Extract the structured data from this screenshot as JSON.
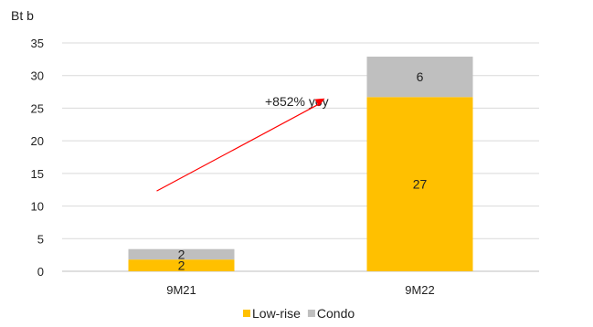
{
  "chart_data": {
    "type": "bar",
    "stacked": true,
    "unit_label": "Bt b",
    "categories": [
      "9M21",
      "9M22"
    ],
    "series": [
      {
        "name": "Low-rise",
        "values": [
          2,
          27
        ],
        "plotted": [
          1.8,
          26.7
        ],
        "color": "#FFC000"
      },
      {
        "name": "Condo",
        "values": [
          2,
          6
        ],
        "plotted": [
          1.6,
          6.2
        ],
        "color": "#BFBFBF"
      }
    ],
    "ylim": [
      0,
      35
    ],
    "yticks": [
      "0",
      "5",
      "10",
      "15",
      "20",
      "25",
      "30",
      "35"
    ],
    "grid": true,
    "legend_position": "bottom",
    "annotation": {
      "text": "+852% yoy",
      "color": "#FF0000",
      "from": {
        "x": "9M21",
        "y": 12.3
      },
      "to": {
        "x": "9M22",
        "y": 26.5
      }
    }
  }
}
